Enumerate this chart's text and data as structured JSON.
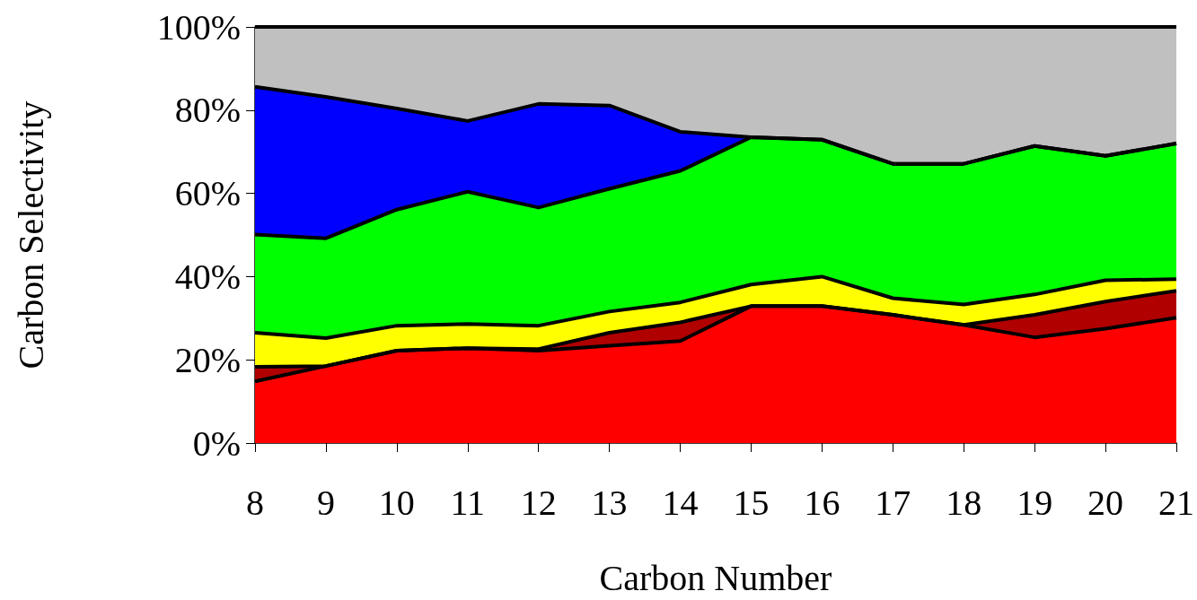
{
  "chart_data": {
    "type": "area",
    "stacked": true,
    "xlabel": "Carbon Number",
    "ylabel": "Carbon Selectivity",
    "categories": [
      "8",
      "9",
      "10",
      "11",
      "12",
      "13",
      "14",
      "15",
      "16",
      "17",
      "18",
      "19",
      "20",
      "21"
    ],
    "series": [
      {
        "color": "#ff0000",
        "values": [
          14.8,
          18.5,
          22.2,
          22.8,
          22.2,
          23.4,
          24.5,
          32.9,
          32.9,
          30.8,
          28.4,
          25.4,
          27.5,
          30.1
        ]
      },
      {
        "color": "#b00000",
        "values": [
          3.5,
          0,
          0,
          0,
          0.4,
          3.1,
          4.5,
          0,
          0,
          0,
          0,
          5.4,
          6.5,
          6.5
        ]
      },
      {
        "color": "#ffff00",
        "values": [
          8.2,
          6.7,
          6.0,
          5.8,
          5.6,
          5.1,
          4.8,
          5.2,
          7.1,
          4.0,
          4.9,
          4.9,
          5.1,
          2.8
        ]
      },
      {
        "color": "#00ff00",
        "values": [
          23.6,
          24.0,
          27.9,
          31.8,
          28.4,
          29.5,
          31.6,
          35.4,
          32.9,
          32.3,
          33.8,
          35.7,
          29.9,
          32.6
        ]
      },
      {
        "color": "#0000ff",
        "values": [
          35.5,
          34.0,
          24.3,
          17.0,
          24.9,
          20.0,
          9.4,
          0,
          0,
          0,
          0,
          0,
          0,
          0
        ]
      },
      {
        "color": "#c0c0c0",
        "values": [
          14.4,
          16.8,
          19.6,
          22.6,
          18.5,
          18.9,
          25.2,
          26.5,
          27.1,
          32.9,
          32.9,
          28.6,
          31.0,
          28.0
        ]
      }
    ],
    "ylim": [
      0,
      100
    ],
    "yticks": [
      {
        "value": 0,
        "label": "0%"
      },
      {
        "value": 20,
        "label": "20%"
      },
      {
        "value": 40,
        "label": "40%"
      },
      {
        "value": 60,
        "label": "60%"
      },
      {
        "value": 80,
        "label": "80%"
      },
      {
        "value": 100,
        "label": "100%"
      }
    ],
    "grid": false,
    "marker": "none",
    "line_style": "solid"
  }
}
